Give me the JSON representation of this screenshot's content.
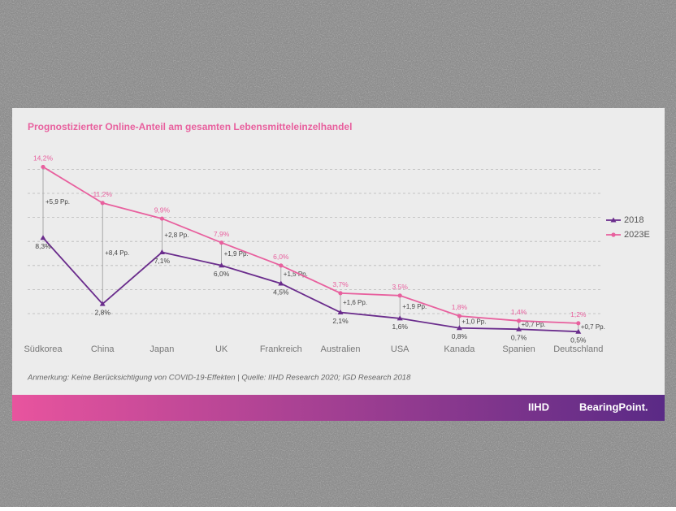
{
  "chart_data": {
    "type": "line",
    "title": "Prognostizierter Online-Anteil am gesamten Lebensmitteleinzelhandel",
    "categories": [
      "Südkorea",
      "China",
      "Japan",
      "UK",
      "Frankreich",
      "Australien",
      "USA",
      "Kanada",
      "Spanien",
      "Deutschland"
    ],
    "series": [
      {
        "name": "2018",
        "color": "#6a2c8c",
        "values": [
          8.3,
          2.8,
          7.1,
          6.0,
          4.5,
          2.1,
          1.6,
          0.8,
          0.7,
          0.5
        ],
        "value_labels": [
          "8,3%",
          "2,8%",
          "7,1%",
          "6,0%",
          "4,5%",
          "2,1%",
          "1,6%",
          "0,8%",
          "0,7%",
          "0,5%"
        ]
      },
      {
        "name": "2023E",
        "color": "#e8609e",
        "values": [
          14.2,
          11.2,
          9.9,
          7.9,
          6.0,
          3.7,
          3.5,
          1.8,
          1.4,
          1.2
        ],
        "value_labels": [
          "14,2%",
          "11,2%",
          "9,9%",
          "7,9%",
          "6,0%",
          "3,7%",
          "3,5%",
          "1,8%",
          "1,4%",
          "1,2%"
        ]
      }
    ],
    "difference_labels": [
      "+5,9 Pp.",
      "+8,4 Pp.",
      "+2,8 Pp.",
      "+1,9 Pp.",
      "+1,5 Pp.",
      "+1,6 Pp.",
      "+1,9 Pp.",
      "+1,0 Pp.",
      "+0,7 Pp.",
      "+0,7 Pp."
    ],
    "ylim": [
      0,
      15
    ],
    "yticks": [
      2,
      4,
      6,
      8,
      10,
      12,
      14
    ],
    "grid": true,
    "legend": "right",
    "note": "Anmerkung: Keine Berücksichtigung von COVID-19-Effekten  |  Quelle:  IIHD Research 2020; IGD Research 2018",
    "footer_logos": [
      "IIHD",
      "BearingPoint."
    ]
  }
}
